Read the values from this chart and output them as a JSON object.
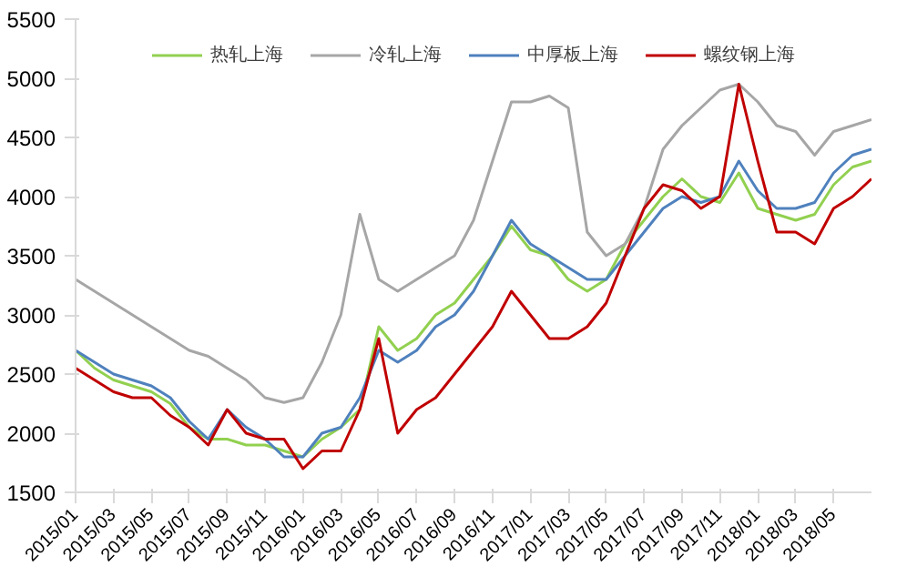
{
  "chart_data": {
    "type": "line",
    "x": [
      "2015-01",
      "2015-02",
      "2015-03",
      "2015-04",
      "2015-05",
      "2015-06",
      "2015-07",
      "2015-08",
      "2015-09",
      "2015-10",
      "2015-11",
      "2015-12",
      "2016-01",
      "2016-02",
      "2016-03",
      "2016-04",
      "2016-05",
      "2016-06",
      "2016-07",
      "2016-08",
      "2016-09",
      "2016-10",
      "2016-11",
      "2016-12",
      "2017-01",
      "2017-02",
      "2017-03",
      "2017-04",
      "2017-05",
      "2017-06",
      "2017-07",
      "2017-08",
      "2017-09",
      "2017-10",
      "2017-11",
      "2017-12",
      "2018-01",
      "2018-02",
      "2018-03",
      "2018-04",
      "2018-05",
      "2018-06",
      "2018-07"
    ],
    "series": [
      {
        "name": "热轧上海",
        "color": "#92d050",
        "values": [
          2700,
          2550,
          2450,
          2400,
          2350,
          2250,
          2050,
          1950,
          1950,
          1900,
          1900,
          1850,
          1800,
          1950,
          2050,
          2200,
          2900,
          2700,
          2800,
          3000,
          3100,
          3300,
          3500,
          3750,
          3550,
          3500,
          3300,
          3200,
          3300,
          3600,
          3800,
          4000,
          4150,
          4000,
          3950,
          4200,
          3900,
          3850,
          3800,
          3850,
          4100,
          4250,
          4300
        ]
      },
      {
        "name": "冷轧上海",
        "color": "#a6a6a6",
        "values": [
          3300,
          3200,
          3100,
          3000,
          2900,
          2800,
          2700,
          2650,
          2550,
          2450,
          2300,
          2260,
          2300,
          2600,
          3000,
          3850,
          3300,
          3200,
          3300,
          3400,
          3500,
          3800,
          4300,
          4800,
          4800,
          4850,
          4750,
          3700,
          3500,
          3600,
          3900,
          4400,
          4600,
          4750,
          4900,
          4950,
          4800,
          4600,
          4550,
          4350,
          4550,
          4600,
          4650
        ]
      },
      {
        "name": "中厚板上海",
        "color": "#4f81bd",
        "values": [
          2700,
          2600,
          2500,
          2450,
          2400,
          2300,
          2100,
          1950,
          2200,
          2050,
          1950,
          1800,
          1800,
          2000,
          2050,
          2300,
          2700,
          2600,
          2700,
          2900,
          3000,
          3200,
          3500,
          3800,
          3600,
          3500,
          3400,
          3300,
          3300,
          3500,
          3700,
          3900,
          4000,
          3950,
          4000,
          4300,
          4050,
          3900,
          3900,
          3950,
          4200,
          4350,
          4400
        ]
      },
      {
        "name": "螺纹钢上海",
        "color": "#c00000",
        "values": [
          2550,
          2450,
          2350,
          2300,
          2300,
          2150,
          2050,
          1900,
          2200,
          2000,
          1950,
          1950,
          1700,
          1850,
          1850,
          2200,
          2800,
          2000,
          2200,
          2300,
          2500,
          2700,
          2900,
          3200,
          3000,
          2800,
          2800,
          2900,
          3100,
          3500,
          3900,
          4100,
          4050,
          3900,
          4000,
          4950,
          4300,
          3700,
          3700,
          3600,
          3900,
          4000,
          4150
        ]
      }
    ],
    "xlim": [
      "2015-01",
      "2018-07"
    ],
    "xticks": [
      {
        "value": "2015-01",
        "label": "2015/01"
      },
      {
        "value": "2015-03",
        "label": "2015/03"
      },
      {
        "value": "2015-05",
        "label": "2015/05"
      },
      {
        "value": "2015-07",
        "label": "2015/07"
      },
      {
        "value": "2015-09",
        "label": "2015/09"
      },
      {
        "value": "2015-11",
        "label": "2015/11"
      },
      {
        "value": "2016-01",
        "label": "2016/01"
      },
      {
        "value": "2016-03",
        "label": "2016/03"
      },
      {
        "value": "2016-05",
        "label": "2016/05"
      },
      {
        "value": "2016-07",
        "label": "2016/07"
      },
      {
        "value": "2016-09",
        "label": "2016/09"
      },
      {
        "value": "2016-11",
        "label": "2016/11"
      },
      {
        "value": "2017-01",
        "label": "2017/01"
      },
      {
        "value": "2017-03",
        "label": "2017/03"
      },
      {
        "value": "2017-05",
        "label": "2017/05"
      },
      {
        "value": "2017-07",
        "label": "2017/07"
      },
      {
        "value": "2017-09",
        "label": "2017/09"
      },
      {
        "value": "2017-11",
        "label": "2017/11"
      },
      {
        "value": "2018-01",
        "label": "2018/01"
      },
      {
        "value": "2018-03",
        "label": "2018/03"
      },
      {
        "value": "2018-05",
        "label": "2018/05"
      }
    ],
    "ylim": [
      1500,
      5500
    ],
    "yticks": [
      1500,
      2000,
      2500,
      3000,
      3500,
      4000,
      4500,
      5000,
      5500
    ],
    "legend": "top",
    "grid": false,
    "marker": "none",
    "line_style": "solid"
  }
}
